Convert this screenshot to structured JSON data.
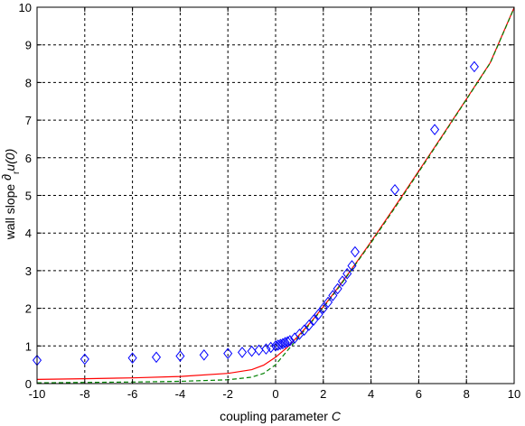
{
  "chart_data": {
    "type": "line",
    "title": "",
    "xlabel": "coupling parameter",
    "xlabel_symbol": "C",
    "ylabel_prefix": "wall slope ",
    "ylabel_symbol": "∂",
    "ylabel_sub": "r",
    "ylabel_suffix": "u(0)",
    "xlim": [
      -10,
      10
    ],
    "ylim": [
      0,
      10
    ],
    "xticks": [
      -10,
      -8,
      -6,
      -4,
      -2,
      0,
      2,
      4,
      6,
      8,
      10
    ],
    "yticks": [
      0,
      1,
      2,
      3,
      4,
      5,
      6,
      7,
      8,
      9,
      10
    ],
    "grid": true,
    "grid_style": "dashed",
    "legend": "none",
    "series": [
      {
        "style": "line-solid",
        "color": "#ff0000",
        "x": [
          -10,
          -8,
          -6,
          -4,
          -2,
          -1,
          -0.5,
          0,
          0.5,
          1,
          1.5,
          2,
          2.5,
          3,
          3.5,
          4,
          5,
          6,
          7,
          8,
          9,
          10
        ],
        "y": [
          0.11,
          0.13,
          0.15,
          0.19,
          0.27,
          0.37,
          0.49,
          0.7,
          0.97,
          1.3,
          1.65,
          2.04,
          2.45,
          2.88,
          3.32,
          3.77,
          4.7,
          5.65,
          6.6,
          7.56,
          8.53,
          9.99
        ]
      },
      {
        "style": "line-dashed",
        "color": "#008000",
        "x": [
          -10,
          -8,
          -6,
          -4,
          -2,
          -1,
          -0.5,
          0,
          0.5,
          1,
          1.5,
          2,
          2.5,
          3,
          3.5,
          4,
          5,
          6,
          7,
          8,
          9,
          10
        ],
        "y": [
          0.02,
          0.03,
          0.04,
          0.06,
          0.1,
          0.17,
          0.27,
          0.5,
          0.88,
          1.26,
          1.63,
          2.02,
          2.43,
          2.86,
          3.3,
          3.74,
          4.67,
          5.62,
          6.58,
          7.55,
          8.52,
          9.98
        ]
      },
      {
        "style": "markers-diamond",
        "color": "#0000ff",
        "x": [
          -10,
          -8,
          -6,
          -5,
          -4,
          -3,
          -2,
          -1.4,
          -1,
          -0.7,
          -0.4,
          -0.2,
          0,
          0.1,
          0.2,
          0.3,
          0.4,
          0.5,
          0.6,
          0.8,
          1,
          1.2,
          1.4,
          1.6,
          1.8,
          2,
          2.2,
          2.4,
          2.6,
          2.8,
          3,
          3.2,
          3.33,
          5,
          6.67,
          8.33
        ],
        "y": [
          0.62,
          0.65,
          0.68,
          0.7,
          0.73,
          0.76,
          0.8,
          0.83,
          0.86,
          0.89,
          0.92,
          0.96,
          1.0,
          1.02,
          1.04,
          1.06,
          1.09,
          1.11,
          1.14,
          1.21,
          1.31,
          1.42,
          1.55,
          1.69,
          1.84,
          2.0,
          2.16,
          2.34,
          2.52,
          2.72,
          2.92,
          3.13,
          3.5,
          5.15,
          6.75,
          8.42
        ]
      }
    ]
  }
}
